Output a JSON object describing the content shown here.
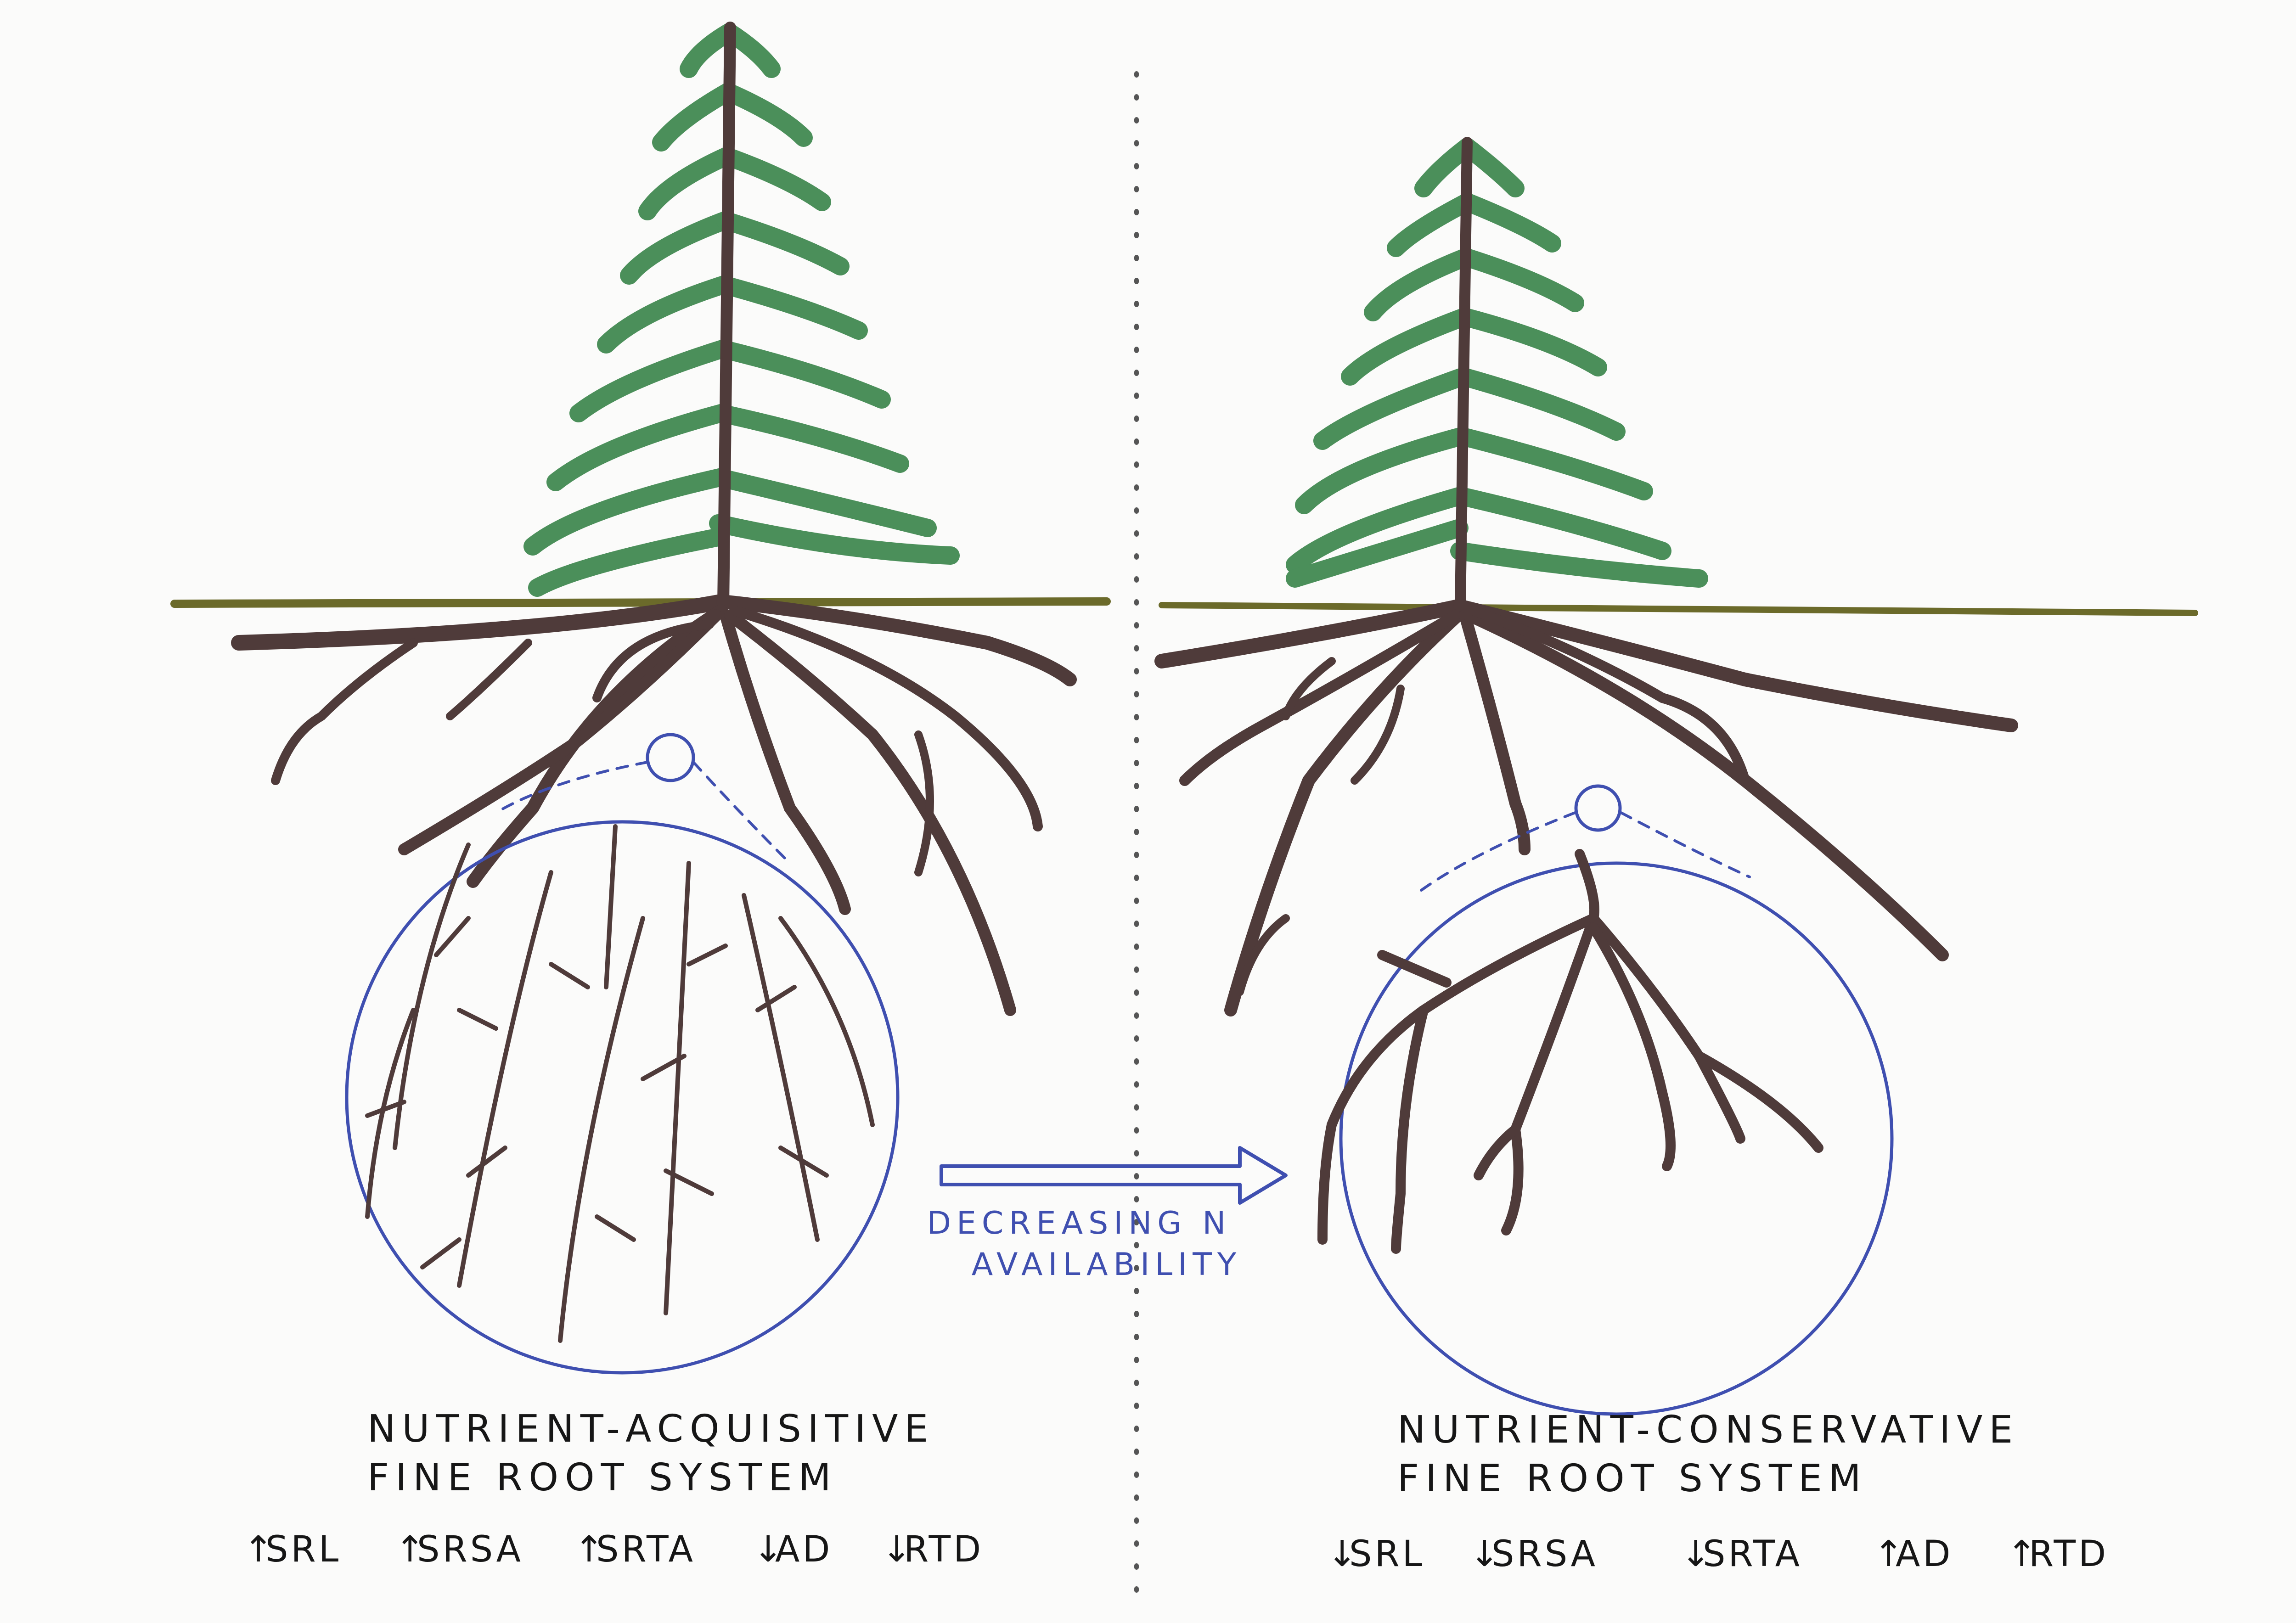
{
  "left_panel": {
    "title_line1": "NUTRIENT-ACQUISITIVE",
    "title_line2": "FINE ROOT SYSTEM",
    "metrics": [
      {
        "arrow": "↑",
        "label": "SRL"
      },
      {
        "arrow": "↑",
        "label": "SRSA"
      },
      {
        "arrow": "↑",
        "label": "SRTA"
      },
      {
        "arrow": "↓",
        "label": "AD"
      },
      {
        "arrow": "↓",
        "label": "RTD"
      }
    ]
  },
  "right_panel": {
    "title_line1": "NUTRIENT-CONSERVATIVE",
    "title_line2": "FINE ROOT SYSTEM",
    "metrics": [
      {
        "arrow": "↓",
        "label": "SRL"
      },
      {
        "arrow": "↓",
        "label": "SRSA"
      },
      {
        "arrow": "↓",
        "label": "SRTA"
      },
      {
        "arrow": "↑",
        "label": "AD"
      },
      {
        "arrow": "↑",
        "label": "RTD"
      }
    ]
  },
  "gradient_arrow": {
    "line1": "DECREASING N",
    "line2": "AVAILABILITY"
  },
  "colors": {
    "foliage": "#4b8f5a",
    "trunk_root": "#4f3b3a",
    "ground": "#6b6a2a",
    "circle": "#3f4fb0",
    "text": "#161616"
  }
}
